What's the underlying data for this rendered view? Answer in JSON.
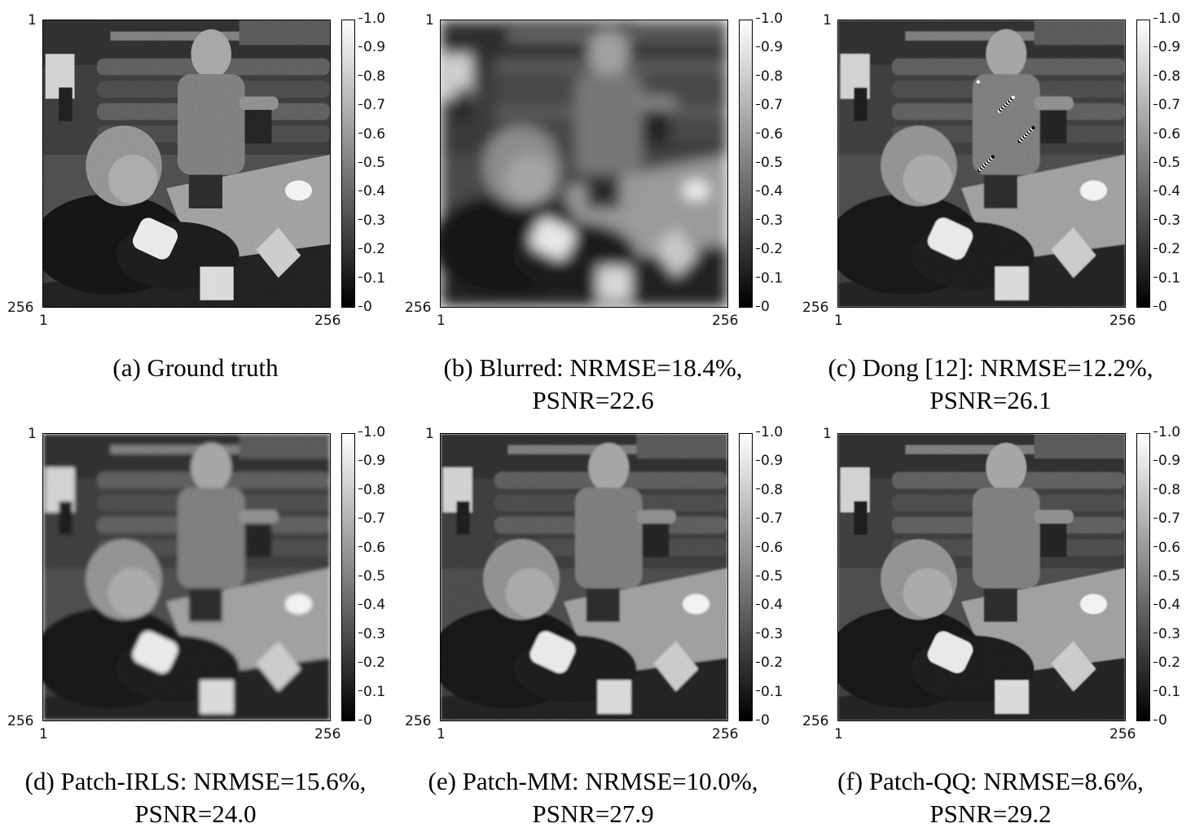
{
  "colorbar": {
    "ticks": [
      "1.0",
      "0.9",
      "0.8",
      "0.7",
      "0.6",
      "0.5",
      "0.4",
      "0.3",
      "0.2",
      "0.1",
      "0"
    ],
    "colormap": "gray",
    "min": 0,
    "max": 1.0
  },
  "axes": {
    "y_top": "1",
    "y_bottom": "256",
    "x_left": "1",
    "x_right": "256"
  },
  "panels": [
    {
      "caption_line1": "(a) Ground truth",
      "caption_line2": "",
      "blur": 0,
      "noise": 0.35,
      "artifact": false
    },
    {
      "caption_line1": "(b) Blurred: NRMSE=18.4%,",
      "caption_line2": "PSNR=22.6",
      "blur": 6,
      "noise": 0,
      "artifact": false
    },
    {
      "caption_line1": "(c) Dong [12]: NRMSE=12.2%,",
      "caption_line2": "PSNR=26.1",
      "blur": 0.6,
      "noise": 0.3,
      "artifact": true
    },
    {
      "caption_line1": "(d) Patch-IRLS: NRMSE=15.6%,",
      "caption_line2": "PSNR=24.0",
      "blur": 1.8,
      "noise": 0.3,
      "artifact": false
    },
    {
      "caption_line1": "(e) Patch-MM: NRMSE=10.0%,",
      "caption_line2": "PSNR=27.9",
      "blur": 0.9,
      "noise": 0.25,
      "artifact": false
    },
    {
      "caption_line1": "(f) Patch-QQ: NRMSE=8.6%,",
      "caption_line2": "PSNR=29.2",
      "blur": 0.5,
      "noise": 0.3,
      "artifact": false
    }
  ]
}
